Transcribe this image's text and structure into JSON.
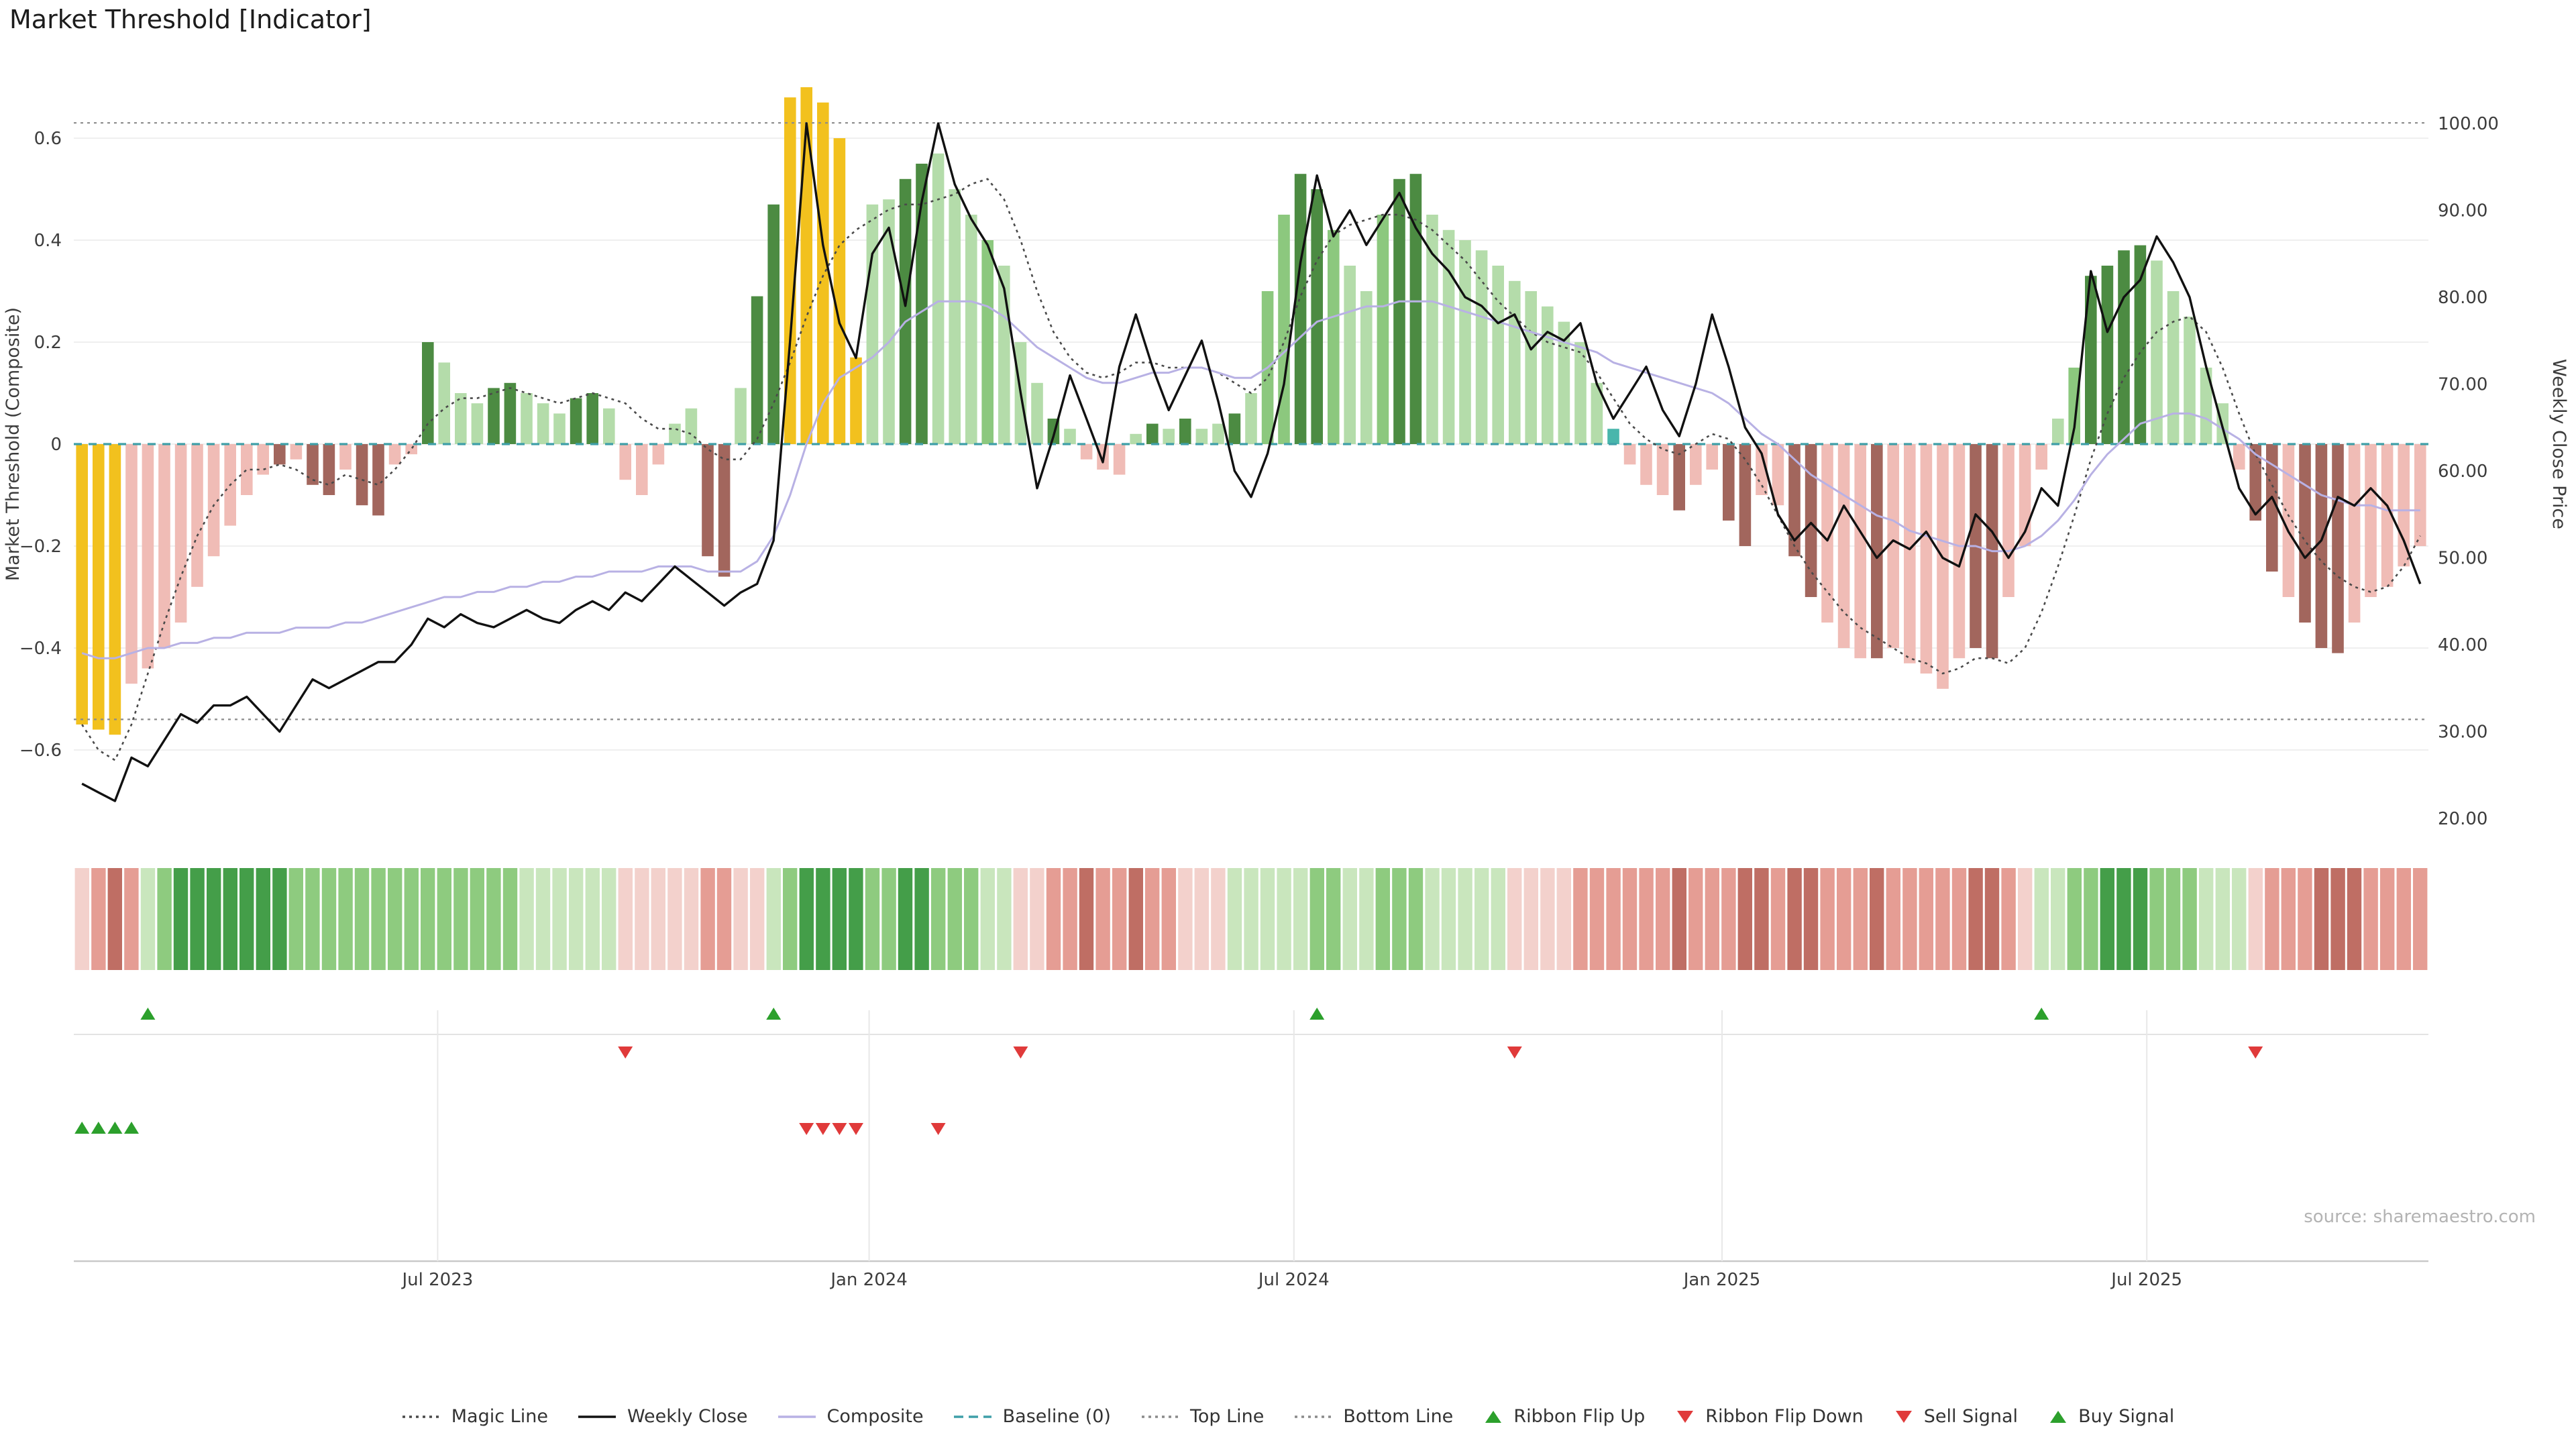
{
  "page": {
    "title": "Market Threshold [Indicator]",
    "source": "source: sharemaestro.com"
  },
  "palette": {
    "bars": {
      "Y": "#f2c11e",
      "p": "#f0bcb6",
      "m": "#a2665d",
      "g1": "#b4dcaa",
      "g2": "#8cc87e",
      "g3": "#4c8b42",
      "t": "#49b6ac"
    },
    "ribbon": {
      "p1": "#f3d1cc",
      "p2": "#e59d94",
      "p3": "#bf6e64",
      "g1": "#c9e6bd",
      "g2": "#8ecb7f",
      "g3": "#449e49"
    },
    "signal_up": "#2ca02c",
    "signal_down": "#e03a3a",
    "lines": {
      "weekly_close": "#111111",
      "composite": "#b8b1e4",
      "magic": "#4a4a4a",
      "baseline": "#3f9fa8",
      "ref": "#8b8b8b"
    }
  },
  "chart_data": {
    "type": "bar",
    "title": "Market Threshold [Indicator]",
    "x_unit": "week",
    "x_ticks": [
      {
        "pos": 21.6,
        "label": "Jul 2023"
      },
      {
        "pos": 47.8,
        "label": "Jan 2024"
      },
      {
        "pos": 73.6,
        "label": "Jul 2024"
      },
      {
        "pos": 99.6,
        "label": "Jan 2025"
      },
      {
        "pos": 125.4,
        "label": "Jul 2025"
      }
    ],
    "left_axis": {
      "label": "Market Threshold (Composite)",
      "ticks": [
        0.6,
        0.4,
        0.2,
        0,
        -0.2,
        -0.4,
        -0.6
      ],
      "range": [
        -0.77,
        0.77
      ]
    },
    "right_axis": {
      "label": "Weekly Close Price",
      "ticks": [
        100,
        90,
        80,
        70,
        60,
        50,
        40,
        30,
        20
      ],
      "range": [
        15.5,
        106
      ]
    },
    "reference_lines": {
      "top_line": 0.63,
      "baseline": 0,
      "bottom_line": -0.54
    },
    "threshold_bars": {
      "name": "Market Threshold histogram",
      "values": [
        -0.55,
        -0.56,
        -0.57,
        -0.47,
        -0.44,
        -0.4,
        -0.35,
        -0.28,
        -0.22,
        -0.16,
        -0.1,
        -0.06,
        -0.04,
        -0.03,
        -0.08,
        -0.1,
        -0.05,
        -0.12,
        -0.14,
        -0.04,
        -0.02,
        0.2,
        0.16,
        0.1,
        0.08,
        0.11,
        0.12,
        0.1,
        0.08,
        0.06,
        0.09,
        0.1,
        0.07,
        -0.07,
        -0.1,
        -0.04,
        0.04,
        0.07,
        -0.22,
        -0.26,
        0.11,
        0.29,
        0.47,
        0.68,
        0.7,
        0.67,
        0.6,
        0.17,
        0.47,
        0.48,
        0.52,
        0.55,
        0.57,
        0.5,
        0.45,
        0.4,
        0.35,
        0.2,
        0.12,
        0.05,
        0.03,
        -0.03,
        -0.05,
        -0.06,
        0.02,
        0.04,
        0.03,
        0.05,
        0.03,
        0.04,
        0.06,
        0.1,
        0.3,
        0.45,
        0.53,
        0.5,
        0.42,
        0.35,
        0.3,
        0.45,
        0.52,
        0.53,
        0.45,
        0.42,
        0.4,
        0.38,
        0.35,
        0.32,
        0.3,
        0.27,
        0.24,
        0.2,
        0.12,
        0.03,
        -0.04,
        -0.08,
        -0.1,
        -0.13,
        -0.08,
        -0.05,
        -0.15,
        -0.2,
        -0.1,
        -0.12,
        -0.22,
        -0.3,
        -0.35,
        -0.4,
        -0.42,
        -0.42,
        -0.4,
        -0.43,
        -0.45,
        -0.48,
        -0.42,
        -0.4,
        -0.42,
        -0.3,
        -0.2,
        -0.05,
        0.05,
        0.15,
        0.33,
        0.35,
        0.38,
        0.39,
        0.36,
        0.3,
        0.25,
        0.15,
        0.08,
        -0.05,
        -0.15,
        -0.25,
        -0.3,
        -0.35,
        -0.4,
        -0.41,
        -0.35,
        -0.3,
        -0.28,
        -0.24,
        -0.2
      ],
      "colors": [
        "Y",
        "Y",
        "Y",
        "p",
        "p",
        "p",
        "p",
        "p",
        "p",
        "p",
        "p",
        "p",
        "m",
        "p",
        "m",
        "m",
        "p",
        "m",
        "m",
        "p",
        "p",
        "g3",
        "g1",
        "g1",
        "g1",
        "g3",
        "g3",
        "g1",
        "g1",
        "g1",
        "g3",
        "g3",
        "g1",
        "p",
        "p",
        "p",
        "g1",
        "g1",
        "m",
        "m",
        "g1",
        "g3",
        "g3",
        "Y",
        "Y",
        "Y",
        "Y",
        "Y",
        "g1",
        "g1",
        "g3",
        "g3",
        "g1",
        "g1",
        "g1",
        "g2",
        "g1",
        "g1",
        "g1",
        "g3",
        "g1",
        "p",
        "p",
        "p",
        "g1",
        "g3",
        "g1",
        "g3",
        "g1",
        "g1",
        "g3",
        "g1",
        "g2",
        "g2",
        "g3",
        "g3",
        "g2",
        "g1",
        "g1",
        "g2",
        "g3",
        "g3",
        "g1",
        "g1",
        "g1",
        "g1",
        "g1",
        "g1",
        "g1",
        "g1",
        "g1",
        "g1",
        "g1",
        "t",
        "p",
        "p",
        "p",
        "m",
        "p",
        "p",
        "m",
        "m",
        "p",
        "p",
        "m",
        "m",
        "p",
        "p",
        "p",
        "m",
        "p",
        "p",
        "p",
        "p",
        "p",
        "m",
        "m",
        "p",
        "p",
        "p",
        "g1",
        "g2",
        "g3",
        "g3",
        "g3",
        "g3",
        "g1",
        "g1",
        "g1",
        "g1",
        "g1",
        "p",
        "m",
        "m",
        "p",
        "m",
        "m",
        "m",
        "p",
        "p",
        "p",
        "p",
        "p"
      ]
    },
    "series": [
      {
        "name": "Weekly Close",
        "axis": "right",
        "values": [
          24,
          23,
          22,
          27,
          26,
          29,
          32,
          31,
          33,
          33,
          34,
          32,
          30,
          33,
          36,
          35,
          36,
          37,
          38,
          38,
          40,
          43,
          42,
          43.5,
          42.5,
          42,
          43,
          44,
          43,
          42.5,
          44,
          45,
          44,
          46,
          45,
          47,
          49,
          47.5,
          46,
          44.5,
          46,
          47,
          52,
          75,
          100,
          86,
          77,
          73,
          85,
          88,
          79,
          91,
          100,
          93,
          89,
          86,
          81,
          69,
          58,
          64,
          71,
          66,
          61,
          72,
          78,
          72,
          67,
          71,
          75,
          68,
          60,
          57,
          62,
          70,
          84,
          94,
          87,
          90,
          86,
          89,
          92,
          88,
          85,
          83,
          80,
          79,
          77,
          78,
          74,
          76,
          75,
          77,
          70,
          66,
          69,
          72,
          67,
          64,
          70,
          78,
          72,
          65,
          62,
          55,
          52,
          54,
          52,
          56,
          53,
          50,
          52,
          51,
          53,
          50,
          49,
          55,
          53,
          50,
          53,
          58,
          56,
          65,
          83,
          76,
          80,
          82,
          87,
          84,
          80,
          72,
          65,
          58,
          55,
          57,
          53,
          50,
          52,
          57,
          56,
          58,
          56,
          52,
          47
        ]
      },
      {
        "name": "Composite",
        "axis": "left",
        "values": [
          -0.41,
          -0.42,
          -0.42,
          -0.41,
          -0.4,
          -0.4,
          -0.39,
          -0.39,
          -0.38,
          -0.38,
          -0.37,
          -0.37,
          -0.37,
          -0.36,
          -0.36,
          -0.36,
          -0.35,
          -0.35,
          -0.34,
          -0.33,
          -0.32,
          -0.31,
          -0.3,
          -0.3,
          -0.29,
          -0.29,
          -0.28,
          -0.28,
          -0.27,
          -0.27,
          -0.26,
          -0.26,
          -0.25,
          -0.25,
          -0.25,
          -0.24,
          -0.24,
          -0.24,
          -0.25,
          -0.25,
          -0.25,
          -0.23,
          -0.18,
          -0.1,
          0.0,
          0.08,
          0.13,
          0.15,
          0.17,
          0.2,
          0.24,
          0.26,
          0.28,
          0.28,
          0.28,
          0.27,
          0.25,
          0.22,
          0.19,
          0.17,
          0.15,
          0.13,
          0.12,
          0.12,
          0.13,
          0.14,
          0.14,
          0.15,
          0.15,
          0.14,
          0.13,
          0.13,
          0.15,
          0.18,
          0.21,
          0.24,
          0.25,
          0.26,
          0.27,
          0.27,
          0.28,
          0.28,
          0.28,
          0.27,
          0.26,
          0.25,
          0.24,
          0.23,
          0.22,
          0.21,
          0.2,
          0.19,
          0.18,
          0.16,
          0.15,
          0.14,
          0.13,
          0.12,
          0.11,
          0.1,
          0.08,
          0.05,
          0.02,
          0.0,
          -0.03,
          -0.06,
          -0.08,
          -0.1,
          -0.12,
          -0.14,
          -0.15,
          -0.17,
          -0.18,
          -0.19,
          -0.2,
          -0.2,
          -0.21,
          -0.21,
          -0.2,
          -0.18,
          -0.15,
          -0.11,
          -0.06,
          -0.02,
          0.01,
          0.04,
          0.05,
          0.06,
          0.06,
          0.05,
          0.03,
          0.01,
          -0.02,
          -0.04,
          -0.06,
          -0.08,
          -0.1,
          -0.11,
          -0.12,
          -0.12,
          -0.13,
          -0.13,
          -0.13
        ]
      },
      {
        "name": "Magic Line",
        "axis": "left",
        "values": [
          -0.55,
          -0.6,
          -0.62,
          -0.55,
          -0.45,
          -0.35,
          -0.26,
          -0.18,
          -0.12,
          -0.08,
          -0.05,
          -0.05,
          -0.04,
          -0.05,
          -0.07,
          -0.08,
          -0.06,
          -0.07,
          -0.08,
          -0.05,
          -0.01,
          0.04,
          0.07,
          0.09,
          0.09,
          0.1,
          0.11,
          0.1,
          0.09,
          0.08,
          0.09,
          0.1,
          0.09,
          0.08,
          0.05,
          0.03,
          0.03,
          0.02,
          -0.01,
          -0.03,
          -0.03,
          0.01,
          0.08,
          0.16,
          0.25,
          0.33,
          0.39,
          0.42,
          0.44,
          0.46,
          0.47,
          0.47,
          0.48,
          0.49,
          0.51,
          0.52,
          0.48,
          0.4,
          0.3,
          0.22,
          0.17,
          0.14,
          0.13,
          0.14,
          0.16,
          0.16,
          0.15,
          0.15,
          0.15,
          0.14,
          0.12,
          0.1,
          0.13,
          0.2,
          0.29,
          0.36,
          0.41,
          0.43,
          0.44,
          0.45,
          0.45,
          0.44,
          0.42,
          0.39,
          0.36,
          0.32,
          0.28,
          0.25,
          0.22,
          0.2,
          0.19,
          0.18,
          0.14,
          0.09,
          0.04,
          0.01,
          -0.01,
          -0.02,
          0.0,
          0.02,
          0.01,
          -0.03,
          -0.08,
          -0.14,
          -0.2,
          -0.25,
          -0.29,
          -0.33,
          -0.36,
          -0.38,
          -0.4,
          -0.42,
          -0.43,
          -0.45,
          -0.44,
          -0.42,
          -0.42,
          -0.43,
          -0.4,
          -0.33,
          -0.24,
          -0.14,
          -0.03,
          0.06,
          0.13,
          0.18,
          0.22,
          0.24,
          0.25,
          0.22,
          0.15,
          0.06,
          -0.02,
          -0.08,
          -0.14,
          -0.19,
          -0.23,
          -0.26,
          -0.28,
          -0.29,
          -0.28,
          -0.24,
          -0.18
        ]
      }
    ],
    "ribbon": [
      "p1",
      "p2",
      "p3",
      "p2",
      "g1",
      "g2",
      "g3",
      "g3",
      "g3",
      "g3",
      "g3",
      "g3",
      "g3",
      "g2",
      "g2",
      "g2",
      "g2",
      "g2",
      "g2",
      "g2",
      "g2",
      "g2",
      "g2",
      "g2",
      "g2",
      "g2",
      "g2",
      "g1",
      "g1",
      "g1",
      "g1",
      "g1",
      "g1",
      "p1",
      "p1",
      "p1",
      "p1",
      "p1",
      "p2",
      "p2",
      "p1",
      "p1",
      "g1",
      "g2",
      "g3",
      "g3",
      "g3",
      "g3",
      "g2",
      "g2",
      "g3",
      "g3",
      "g2",
      "g2",
      "g2",
      "g1",
      "g1",
      "p1",
      "p1",
      "p2",
      "p2",
      "p3",
      "p2",
      "p2",
      "p3",
      "p2",
      "p2",
      "p1",
      "p1",
      "p1",
      "g1",
      "g1",
      "g1",
      "g1",
      "g1",
      "g2",
      "g2",
      "g1",
      "g1",
      "g2",
      "g2",
      "g2",
      "g1",
      "g1",
      "g1",
      "g1",
      "g1",
      "p1",
      "p1",
      "p1",
      "p1",
      "p2",
      "p2",
      "p2",
      "p2",
      "p2",
      "p2",
      "p3",
      "p2",
      "p2",
      "p2",
      "p3",
      "p3",
      "p2",
      "p3",
      "p3",
      "p2",
      "p2",
      "p2",
      "p3",
      "p2",
      "p2",
      "p2",
      "p2",
      "p2",
      "p3",
      "p3",
      "p2",
      "p1",
      "g1",
      "g1",
      "g2",
      "g2",
      "g3",
      "g3",
      "g3",
      "g2",
      "g2",
      "g2",
      "g1",
      "g1",
      "g1",
      "p1",
      "p2",
      "p2",
      "p2",
      "p3",
      "p3",
      "p3",
      "p2",
      "p2",
      "p2",
      "p2"
    ],
    "signals": {
      "ribbon_flip_up": [
        4,
        42,
        75,
        119
      ],
      "ribbon_flip_down": [
        33,
        57,
        87,
        132
      ],
      "buy": [
        0,
        1,
        2,
        3
      ],
      "sell": [
        44,
        45,
        46,
        47,
        52
      ]
    }
  },
  "legend": {
    "items": [
      {
        "label": "Magic Line",
        "type": "dotted",
        "color": "#4a4a4a"
      },
      {
        "label": "Weekly Close",
        "type": "solid",
        "color": "#111111"
      },
      {
        "label": "Composite",
        "type": "solid",
        "color": "#b8b1e4"
      },
      {
        "label": "Baseline (0)",
        "type": "dashed",
        "color": "#3f9fa8"
      },
      {
        "label": "Top Line",
        "type": "dotted",
        "color": "#8b8b8b"
      },
      {
        "label": "Bottom Line",
        "type": "dotted",
        "color": "#8b8b8b"
      },
      {
        "label": "Ribbon Flip Up",
        "type": "tri-up",
        "color": "#2ca02c"
      },
      {
        "label": "Ribbon Flip Down",
        "type": "tri-down",
        "color": "#e03a3a"
      },
      {
        "label": "Sell Signal",
        "type": "tri-down",
        "color": "#e03a3a"
      },
      {
        "label": "Buy Signal",
        "type": "tri-up",
        "color": "#2ca02c"
      }
    ]
  }
}
